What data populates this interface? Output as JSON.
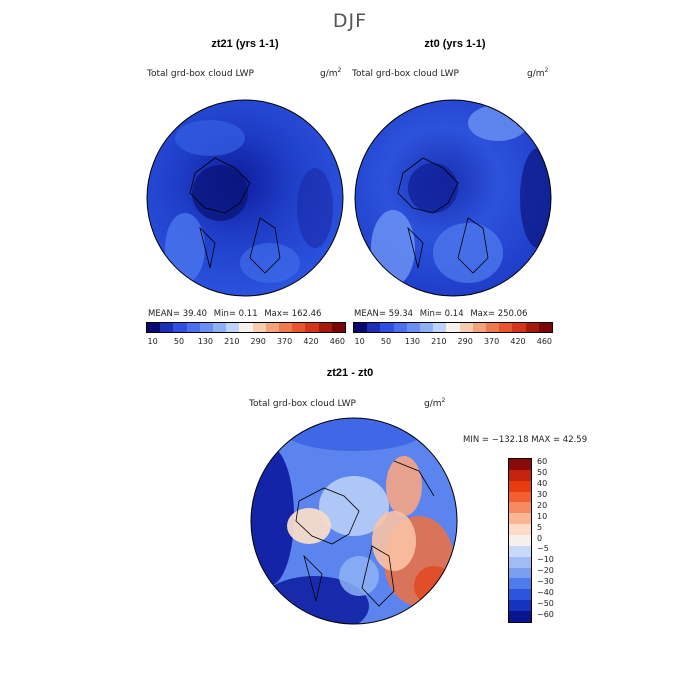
{
  "page_title": "DJF",
  "chart_data": [
    {
      "type": "heatmap",
      "title": "zt21 (yrs 1-1)",
      "variable": "Total grd-box cloud LWP",
      "units": "g/m",
      "units_exp": "2",
      "stats": {
        "mean_label": "MEAN=",
        "mean": "39.40",
        "min_label": "Min=",
        "min": "0.11",
        "max_label": "Max=",
        "max": "162.46"
      },
      "colorbar_ticks": [
        "10",
        "50",
        "130",
        "210",
        "290",
        "370",
        "420",
        "460"
      ]
    },
    {
      "type": "heatmap",
      "title": "zt0 (yrs 1-1)",
      "variable": "Total grd-box cloud LWP",
      "units": "g/m",
      "units_exp": "2",
      "stats": {
        "mean_label": "MEAN=",
        "mean": "59.34",
        "min_label": "Min=",
        "min": "0.14",
        "max_label": "Max=",
        "max": "250.06"
      },
      "colorbar_ticks": [
        "10",
        "50",
        "130",
        "210",
        "290",
        "370",
        "420",
        "460"
      ]
    },
    {
      "type": "heatmap",
      "title": "zt21 - zt0",
      "variable": "Total grd-box cloud LWP",
      "units": "g/m",
      "units_exp": "2",
      "stats_text": "MIN = −132.18 MAX =  42.59",
      "colorbar_ticks": [
        "60",
        "50",
        "40",
        "30",
        "20",
        "10",
        "5",
        "0",
        "−5",
        "−10",
        "−20",
        "−30",
        "−40",
        "−50",
        "−60"
      ]
    }
  ],
  "colors": {
    "seq": [
      "#08086e",
      "#1c2fb5",
      "#2f50e0",
      "#4a70f0",
      "#6b8ff2",
      "#8fb0f5",
      "#bcd4fa",
      "#f7f3ea",
      "#f6cdb0",
      "#f3a27a",
      "#ee7a50",
      "#e8562e",
      "#d4341a",
      "#a61a0c",
      "#7a0606"
    ],
    "div": [
      "#8a0a0a",
      "#c4240f",
      "#e63c10",
      "#f26030",
      "#f58a60",
      "#f9b796",
      "#fbdac8",
      "#f5f0ec",
      "#c8daf8",
      "#9fbcf5",
      "#7a9ef0",
      "#4f7aec",
      "#2a55dc",
      "#1434c0",
      "#0a1490"
    ]
  }
}
